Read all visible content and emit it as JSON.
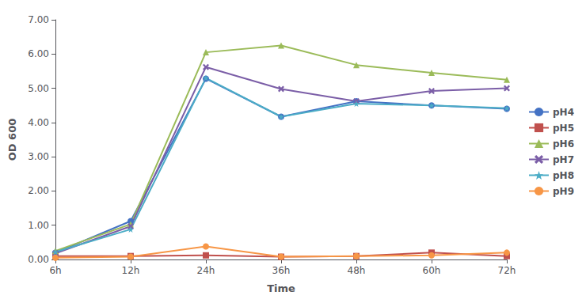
{
  "chart_data": {
    "type": "line",
    "categories": [
      "6h",
      "12h",
      "24h",
      "36h",
      "48h",
      "60h",
      "72h"
    ],
    "series": [
      {
        "name": "pH4",
        "color": "#4472C4",
        "marker": "circle",
        "values": [
          0.2,
          1.12,
          5.28,
          4.17,
          4.62,
          4.5,
          4.4
        ]
      },
      {
        "name": "pH5",
        "color": "#C0504D",
        "marker": "square",
        "values": [
          0.1,
          0.1,
          0.12,
          0.08,
          0.1,
          0.2,
          0.1
        ]
      },
      {
        "name": "pH6",
        "color": "#9BBB59",
        "marker": "triangle",
        "values": [
          0.25,
          1.03,
          6.05,
          6.25,
          5.68,
          5.45,
          5.25
        ]
      },
      {
        "name": "pH7",
        "color": "#7B5EA7",
        "marker": "x",
        "values": [
          0.18,
          0.97,
          5.62,
          4.98,
          4.62,
          4.92,
          5.0
        ]
      },
      {
        "name": "pH8",
        "color": "#4BACC6",
        "marker": "star",
        "values": [
          0.22,
          0.88,
          5.3,
          4.17,
          4.55,
          4.5,
          4.42
        ]
      },
      {
        "name": "pH9",
        "color": "#F79646",
        "marker": "circle",
        "values": [
          0.05,
          0.08,
          0.38,
          0.08,
          0.1,
          0.12,
          0.2
        ]
      }
    ],
    "xlabel": "Time",
    "ylabel": "OD 600",
    "ylim": [
      0.0,
      7.0
    ],
    "yticks": [
      {
        "value": 0,
        "label": "0.00"
      },
      {
        "value": 1,
        "label": "1.00"
      },
      {
        "value": 2,
        "label": "2.00"
      },
      {
        "value": 3,
        "label": "3.00"
      },
      {
        "value": 4,
        "label": "4.00"
      },
      {
        "value": 5,
        "label": "5.00"
      },
      {
        "value": 6,
        "label": "6.00"
      },
      {
        "value": 7,
        "label": "7.00"
      }
    ],
    "grid": false,
    "legend": "right"
  }
}
